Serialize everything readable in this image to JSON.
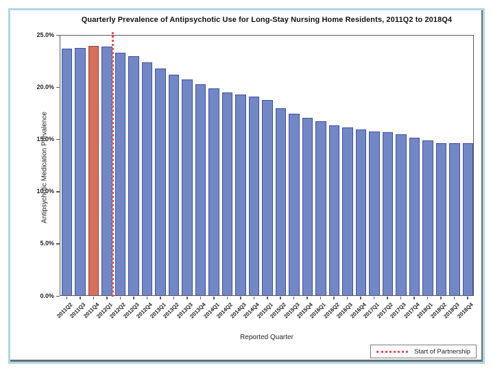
{
  "chart_data": {
    "type": "bar",
    "title": "Quarterly Prevalence of Antipsychotic Use for Long-Stay Nursing Home Residents, 2011Q2 to 2018Q4",
    "xlabel": "Reported Quarter",
    "ylabel": "Antipsychotic Medication Prevalence",
    "categories": [
      "2011Q2",
      "2011Q3",
      "2011Q4",
      "2012Q1",
      "2012Q2",
      "2012Q3",
      "2012Q4",
      "2013Q1",
      "2013Q2",
      "2013Q3",
      "2013Q4",
      "2014Q1",
      "2014Q2",
      "2014Q3",
      "2014Q4",
      "2015Q1",
      "2015Q2",
      "2015Q3",
      "2015Q4",
      "2016Q1",
      "2016Q2",
      "2016Q3",
      "2016Q4",
      "2017Q1",
      "2017Q2",
      "2017Q3",
      "2017Q4",
      "2018Q1",
      "2018Q2",
      "2018Q3",
      "2018Q4"
    ],
    "values": [
      23.6,
      23.7,
      23.9,
      23.8,
      23.2,
      22.9,
      22.3,
      21.7,
      21.1,
      20.7,
      20.2,
      19.8,
      19.4,
      19.2,
      19.0,
      18.7,
      17.9,
      17.4,
      17.0,
      16.7,
      16.3,
      16.1,
      15.9,
      15.7,
      15.6,
      15.4,
      15.1,
      14.8,
      14.6,
      14.6,
      14.6
    ],
    "ylim": [
      0,
      25
    ],
    "ytick_values": [
      0,
      5,
      10,
      15,
      20,
      25
    ],
    "ytick_labels": [
      "0.0%",
      "5.0%",
      "10.0%",
      "15.0%",
      "20.0%",
      "25.0%"
    ],
    "grid": false,
    "legend_position": "bottom-right",
    "legend_label": "Start of Partnership",
    "highlight_category": "2011Q4",
    "vline_after_category": "2012Q1",
    "colors": {
      "bar_fill": "#7287c6",
      "bar_border": "#3e50a0",
      "highlight_fill": "#d8705f",
      "highlight_border": "#a03d2d",
      "vline": "#ee4a4e",
      "frame": "#58595b",
      "slide_border": "#aed6e6"
    }
  }
}
